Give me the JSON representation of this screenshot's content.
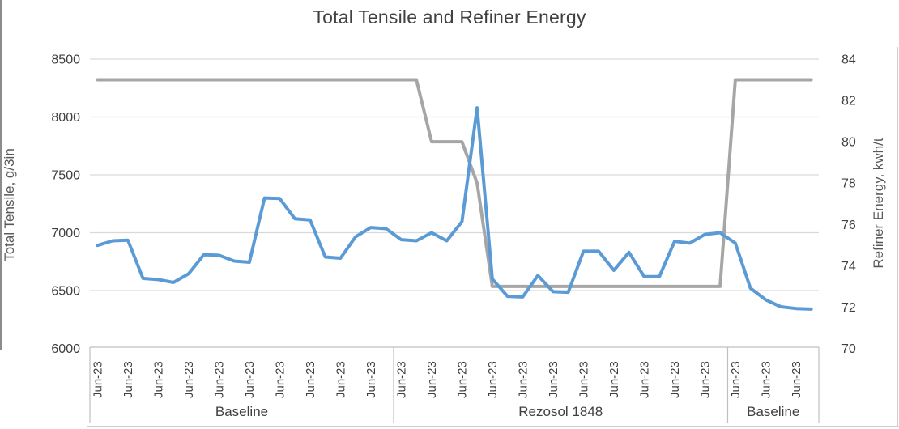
{
  "window": {
    "edge_color_left": "#8c8c8c",
    "edge_color_bottom": "#cccccc",
    "edge_color_right": "#cfcfcf"
  },
  "chart_data": {
    "type": "line",
    "title": "Total Tensile and Refiner Energy",
    "y_left": {
      "label": "Total Tensile, g/3in",
      "min": 6000,
      "max": 8500,
      "ticks": [
        6000,
        6500,
        7000,
        7500,
        8000,
        8500
      ]
    },
    "y_right": {
      "label": "Refiner Energy, kwh/t",
      "min": 70,
      "max": 84,
      "ticks": [
        70,
        72,
        74,
        76,
        78,
        80,
        82,
        84
      ]
    },
    "x_axis": {
      "tick_label": "Jun-23",
      "label_every": 2,
      "groups": [
        {
          "label": "Baseline",
          "count": 20
        },
        {
          "label": "Rezosol 1848",
          "count": 22
        },
        {
          "label": "Baseline",
          "count": 6
        }
      ]
    },
    "grid": true,
    "legend": "none",
    "series": [
      {
        "name": "Refiner Energy",
        "axis": "right",
        "color": "#A6A6A6",
        "values": [
          83,
          83,
          83,
          83,
          83,
          83,
          83,
          83,
          83,
          83,
          83,
          83,
          83,
          83,
          83,
          83,
          83,
          83,
          83,
          83,
          83,
          83,
          80,
          80,
          80,
          78,
          73,
          73,
          73,
          73,
          73,
          73,
          73,
          73,
          73,
          73,
          73,
          73,
          73,
          73,
          73,
          73,
          83,
          83,
          83,
          83,
          83,
          83
        ]
      },
      {
        "name": "Total Tensile",
        "axis": "left",
        "color": "#5B9BD5",
        "values": [
          6890,
          6930,
          6935,
          6605,
          6595,
          6570,
          6645,
          6810,
          6805,
          6755,
          6745,
          7300,
          7295,
          7120,
          7110,
          6790,
          6780,
          6965,
          7045,
          7035,
          6940,
          6930,
          7000,
          6930,
          7095,
          8080,
          6600,
          6450,
          6445,
          6630,
          6490,
          6485,
          6840,
          6840,
          6675,
          6830,
          6620,
          6620,
          6925,
          6910,
          6985,
          7000,
          6910,
          6520,
          6420,
          6360,
          6345,
          6340
        ]
      }
    ]
  }
}
